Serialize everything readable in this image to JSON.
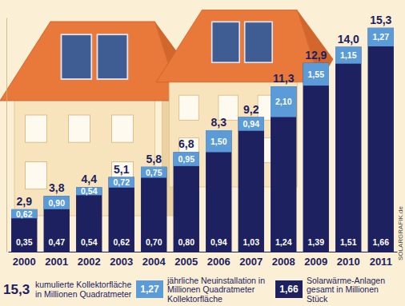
{
  "chart_data": {
    "type": "bar",
    "categories": [
      "2000",
      "2001",
      "2002",
      "2003",
      "2004",
      "2005",
      "2006",
      "2007",
      "2008",
      "2009",
      "2010",
      "2011"
    ],
    "series": [
      {
        "name": "kumulierte Kollektorfläche in Millionen Quadratmeter",
        "legend_sample": "15,3",
        "type": "bar",
        "color": "#1d2160",
        "values": [
          2.9,
          3.8,
          4.4,
          5.1,
          5.8,
          6.8,
          8.3,
          9.2,
          11.3,
          12.9,
          14.0,
          15.3
        ],
        "value_labels": [
          "2,9",
          "3,8",
          "4,4",
          "5,1",
          "5,8",
          "6,8",
          "8,3",
          "9,2",
          "11,3",
          "12,9",
          "14,0",
          "15,3"
        ]
      },
      {
        "name": "jährliche Neuinstallation in Millionen Quadratmeter Kollektorfläche",
        "legend_sample": "1,27",
        "type": "bar",
        "color": "#5a9bd8",
        "values": [
          0.62,
          0.9,
          0.54,
          0.72,
          0.75,
          0.95,
          1.5,
          0.94,
          2.1,
          1.55,
          1.15,
          1.27
        ],
        "value_labels": [
          "0,62",
          "0,90",
          "0,54",
          "0,72",
          "0,75",
          "0,95",
          "1,50",
          "0,94",
          "2,10",
          "1,55",
          "1,15",
          "1,27"
        ]
      },
      {
        "name": "Solarwärme-Anlagen gesamt in Millionen Stück",
        "legend_sample": "1,66",
        "type": "text",
        "color": "#1d2160",
        "values": [
          0.35,
          0.47,
          0.54,
          0.62,
          0.7,
          0.8,
          0.94,
          1.03,
          1.24,
          1.39,
          1.51,
          1.66
        ],
        "value_labels": [
          "0,35",
          "0,47",
          "0,54",
          "0,62",
          "0,70",
          "0,80",
          "0,94",
          "1,03",
          "1,24",
          "1,39",
          "1,51",
          "1,66"
        ]
      }
    ],
    "ylim": [
      0,
      16
    ],
    "yticks": [],
    "data_labels": true,
    "tick_labels": "x",
    "source": "SOLARGRAFIK.de"
  }
}
